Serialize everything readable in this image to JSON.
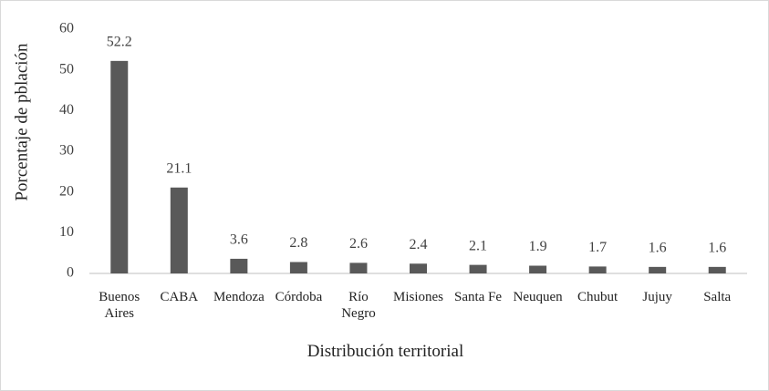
{
  "chart_data": {
    "type": "bar",
    "categories": [
      "Buenos Aires",
      "CABA",
      "Mendoza",
      "Córdoba",
      "Río Negro",
      "Misiones",
      "Santa Fe",
      "Neuquen",
      "Chubut",
      "Jujuy",
      "Salta"
    ],
    "values": [
      52.2,
      21.1,
      3.6,
      2.8,
      2.6,
      2.4,
      2.1,
      1.9,
      1.7,
      1.6,
      1.6
    ],
    "color": "#595959",
    "ylim": [
      0,
      60
    ],
    "yticks": [
      0,
      10,
      20,
      30,
      40,
      50,
      60
    ],
    "y_label": "Porcentaje de pblación",
    "x_label": "Distribución territorial",
    "grid": false
  }
}
